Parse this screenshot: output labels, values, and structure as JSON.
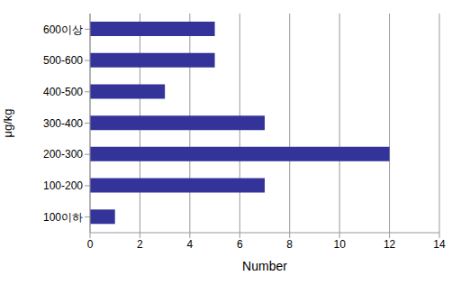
{
  "chart_data": {
    "type": "bar",
    "orientation": "horizontal",
    "categories": [
      "600이상",
      "500-600",
      "400-500",
      "300-400",
      "200-300",
      "100-200",
      "100이하"
    ],
    "values": [
      5,
      5,
      3,
      7,
      12,
      7,
      1
    ],
    "color": "#333399",
    "xlabel": "Number",
    "ylabel": "μg/kg",
    "xlim": [
      0,
      14
    ],
    "xticks": [
      0,
      2,
      4,
      6,
      8,
      10,
      12,
      14
    ],
    "grid": true
  }
}
